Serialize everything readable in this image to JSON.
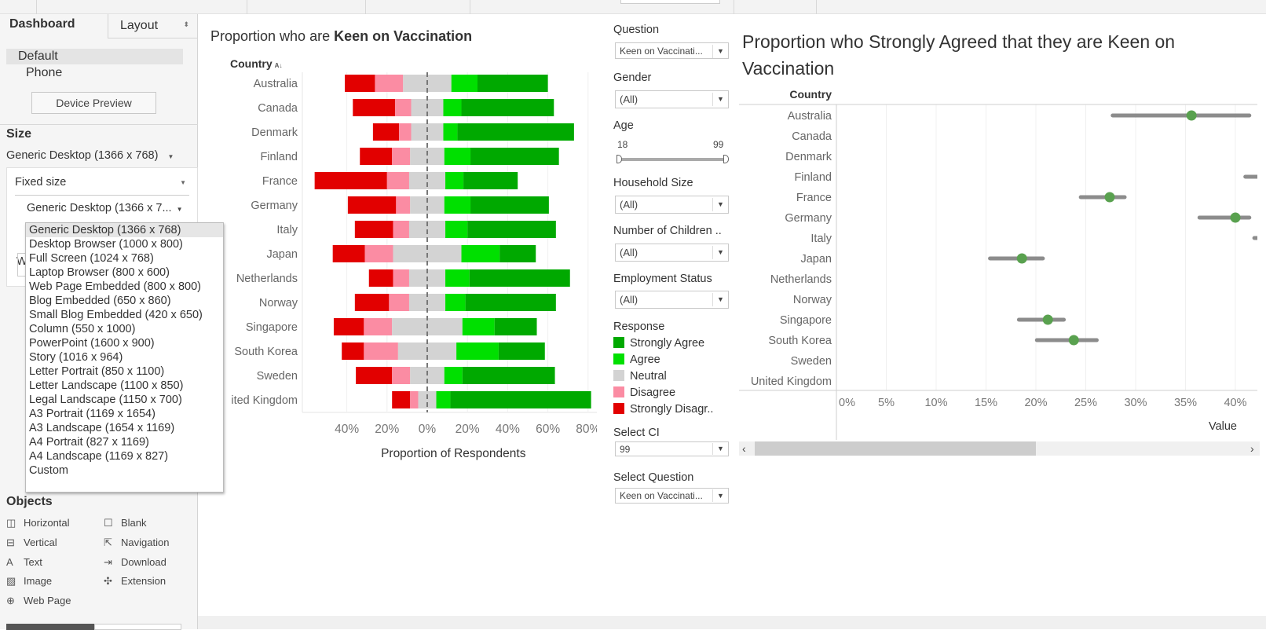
{
  "sidebar": {
    "tabs": {
      "dashboard": "Dashboard",
      "layout": "Layout"
    },
    "devices": [
      "Default",
      "Phone"
    ],
    "device_preview": "Device Preview",
    "size_heading": "Size",
    "size_value": "Generic Desktop (1366 x 768)",
    "size_mode": "Fixed size",
    "size_preset": "Generic Desktop (1366 x 7...",
    "width_label_partial": "W",
    "size_options": [
      "Generic Desktop (1366 x 768)",
      "Desktop Browser (1000 x 800)",
      "Full Screen (1024 x 768)",
      "Laptop Browser (800 x 600)",
      "Web Page Embedded (800 x 800)",
      "Blog Embedded (650 x 860)",
      "Small Blog Embedded (420 x 650)",
      "Column (550 x 1000)",
      "PowerPoint (1600 x 900)",
      "Story (1016 x 964)",
      "Letter Portrait (850 x 1100)",
      "Letter Landscape (1100 x 850)",
      "Legal Landscape (1150 x 700)",
      "A3 Portrait (1169 x 1654)",
      "A3 Landscape (1654 x 1169)",
      "A4 Portrait (827 x 1169)",
      "A4 Landscape (1169 x 827)",
      "Custom"
    ],
    "objects_heading": "Objects",
    "objects": [
      {
        "label": "Horizontal",
        "icon": "horizontal-container-icon"
      },
      {
        "label": "Blank",
        "icon": "blank-icon"
      },
      {
        "label": "Vertical",
        "icon": "vertical-container-icon"
      },
      {
        "label": "Navigation",
        "icon": "navigation-icon"
      },
      {
        "label": "Text",
        "icon": "text-icon"
      },
      {
        "label": "Download",
        "icon": "download-icon"
      },
      {
        "label": "Image",
        "icon": "image-icon"
      },
      {
        "label": "Extension",
        "icon": "extension-icon"
      },
      {
        "label": "Web Page",
        "icon": "globe-icon"
      }
    ]
  },
  "left_chart": {
    "title_prefix": "Proportion who are ",
    "title_bold": "Keen on Vaccination",
    "row_header": "Country"
  },
  "filters": {
    "question": {
      "label": "Question",
      "value": "Keen on Vaccinati..."
    },
    "gender": {
      "label": "Gender",
      "value": "(All)"
    },
    "age": {
      "label": "Age",
      "min": "18",
      "max": "99"
    },
    "household": {
      "label": "Household Size",
      "value": "(All)"
    },
    "children": {
      "label": "Number of Children ..",
      "value": "(All)"
    },
    "employment": {
      "label": "Employment Status",
      "value": "(All)"
    },
    "response": {
      "label": "Response",
      "items": [
        {
          "label": "Strongly Agree",
          "color": "#00a900"
        },
        {
          "label": "Agree",
          "color": "#00e000"
        },
        {
          "label": "Neutral",
          "color": "#d3d3d3"
        },
        {
          "label": "Disagree",
          "color": "#fb8ca3"
        },
        {
          "label": "Strongly Disagr..",
          "color": "#e20000"
        }
      ]
    },
    "ci": {
      "label": "Select CI",
      "value": "99"
    },
    "select_question": {
      "label": "Select Question",
      "value": "Keen on Vaccinati..."
    }
  },
  "right_chart": {
    "title": "Proportion who Strongly Agreed that they are Keen on Vaccination",
    "row_header": "Country"
  },
  "chart_data": [
    {
      "type": "bar",
      "subtype": "diverging-stacked",
      "title": "Proportion who are Keen on Vaccination",
      "xlabel": "Proportion of Respondents",
      "ylabel": "Country",
      "xlim": [
        -60,
        85
      ],
      "xticks": [
        "40%",
        "20%",
        "0%",
        "20%",
        "40%",
        "60%",
        "80%"
      ],
      "grid": true,
      "categories": [
        "Australia",
        "Canada",
        "Denmark",
        "Finland",
        "France",
        "Germany",
        "Italy",
        "Japan",
        "Netherlands",
        "Norway",
        "Singapore",
        "South Korea",
        "Sweden",
        "United Kingdom"
      ],
      "category_labels": [
        "Australia",
        "Canada",
        "Denmark",
        "Finland",
        "France",
        "Germany",
        "Italy",
        "Japan",
        "Netherlands",
        "Norway",
        "Singapore",
        "South Korea",
        "Sweden",
        "ited Kingdom"
      ],
      "series": [
        {
          "name": "Strongly Disagree",
          "color": "#e20000",
          "values": [
            15,
            21,
            13,
            16,
            36,
            24,
            19,
            16,
            12,
            17,
            15,
            11,
            18,
            9
          ]
        },
        {
          "name": "Disagree",
          "color": "#fb8ca3",
          "values": [
            14,
            8,
            6,
            9,
            11,
            7,
            8,
            14,
            8,
            10,
            14,
            17,
            9,
            4
          ]
        },
        {
          "name": "Neutral",
          "color": "#d3d3d3",
          "values": [
            24,
            16,
            16,
            17,
            18,
            17,
            18,
            34,
            18,
            18,
            35,
            29,
            17,
            9
          ]
        },
        {
          "name": "Agree",
          "color": "#00e000",
          "values": [
            13,
            9,
            7,
            13,
            9,
            13,
            11,
            19,
            12,
            10,
            16,
            21,
            9,
            7
          ]
        },
        {
          "name": "Strongly Agree",
          "color": "#00a900",
          "values": [
            35,
            46,
            58,
            44,
            27,
            39,
            44,
            18,
            50,
            45,
            21,
            23,
            46,
            70
          ]
        }
      ]
    },
    {
      "type": "scatter",
      "subtype": "dot-with-confidence-interval",
      "xlabel": "Value",
      "ylabel": "Country",
      "xlim": [
        0,
        42.2
      ],
      "xticks": [
        "0%",
        "5%",
        "10%",
        "15%",
        "20%",
        "25%",
        "30%",
        "35%",
        "40%"
      ],
      "grid": true,
      "point_color": "#59a14f",
      "ci_color": "#8c8c8c",
      "categories": [
        "Australia",
        "Canada",
        "Denmark",
        "Finland",
        "France",
        "Germany",
        "Italy",
        "Japan",
        "Netherlands",
        "Norway",
        "Singapore",
        "South Korea",
        "Sweden",
        "United Kingdom"
      ],
      "values": [
        35.6,
        null,
        null,
        null,
        27.4,
        40.0,
        null,
        18.6,
        null,
        null,
        21.2,
        23.8,
        null,
        null
      ],
      "ci_lower": [
        27.7,
        null,
        null,
        41.0,
        24.5,
        36.4,
        41.9,
        15.4,
        null,
        null,
        18.3,
        20.1,
        null,
        null
      ],
      "ci_upper": [
        41.4,
        null,
        null,
        null,
        28.9,
        41.4,
        null,
        20.7,
        null,
        null,
        22.8,
        26.1,
        null,
        null
      ]
    }
  ]
}
